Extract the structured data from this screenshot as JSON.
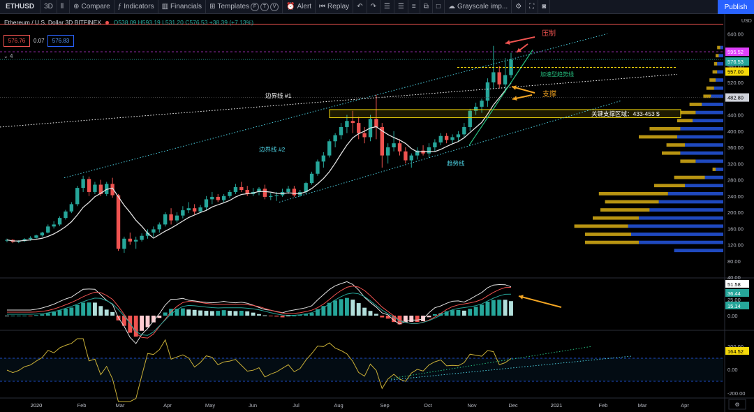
{
  "toolbar": {
    "symbol": "ETHUSD",
    "interval": "3D",
    "compare": "Compare",
    "indicators": "Indicators",
    "financials": "Financials",
    "templates": "Templates",
    "template_letters": [
      "F",
      "T",
      "V"
    ],
    "alert": "Alert",
    "replay": "Replay",
    "theme": "Grayscale imp...",
    "publish": "Publish"
  },
  "legend": {
    "title": "Ethereum / U.S. Dollar",
    "interval": "3D",
    "exchange": "BITFINEX",
    "ohlc": "O538.09 H593.19 L531.20 C576.53 +38.39 (+7.13%)"
  },
  "price_boxes": {
    "bid": "576.76",
    "spread": "0.07",
    "ask": "576.83"
  },
  "indicator_count": "4",
  "colors": {
    "up": "#26a69a",
    "down": "#ef5350",
    "ma": "#e0e0e0",
    "accent_yellow": "#f5d90a",
    "cyan": "#4dd0e1",
    "volprofile_up": "#2962ff",
    "volprofile_dn": "#f5c518"
  },
  "chart_data": {
    "type": "candlestick",
    "currency": "USD",
    "price_axis": {
      "ylim": [
        40,
        680
      ],
      "ticks": [
        640,
        600,
        560,
        520,
        480,
        440,
        400,
        360,
        320,
        280,
        240,
        200,
        160,
        120,
        80,
        40
      ]
    },
    "x_axis_labels": [
      "2020",
      "Feb",
      "Mar",
      "Apr",
      "May",
      "Jun",
      "Jul",
      "Aug",
      "Sep",
      "Oct",
      "Nov",
      "Dec",
      "2021",
      "Feb",
      "Mar",
      "Apr"
    ],
    "price_labels": [
      {
        "text": "595.52",
        "color": "#e040fb"
      },
      {
        "text": "576.53",
        "color": "#26a69a"
      },
      {
        "text": "557.00",
        "color": "#f5d90a"
      },
      {
        "text": "482.80",
        "color": "#d1d4dc"
      }
    ],
    "candles": [
      [
        130,
        135,
        126,
        132
      ],
      [
        132,
        134,
        124,
        127
      ],
      [
        127,
        131,
        124,
        129
      ],
      [
        129,
        136,
        127,
        134
      ],
      [
        134,
        141,
        130,
        137
      ],
      [
        137,
        145,
        135,
        143
      ],
      [
        143,
        152,
        140,
        150
      ],
      [
        150,
        170,
        148,
        165
      ],
      [
        165,
        178,
        160,
        170
      ],
      [
        170,
        190,
        166,
        186
      ],
      [
        186,
        206,
        182,
        202
      ],
      [
        202,
        225,
        198,
        220
      ],
      [
        220,
        265,
        215,
        260
      ],
      [
        260,
        290,
        250,
        282
      ],
      [
        282,
        288,
        240,
        250
      ],
      [
        250,
        275,
        245,
        268
      ],
      [
        268,
        280,
        240,
        245
      ],
      [
        245,
        275,
        240,
        270
      ],
      [
        270,
        285,
        236,
        242
      ],
      [
        242,
        245,
        105,
        110
      ],
      [
        110,
        140,
        100,
        135
      ],
      [
        135,
        150,
        120,
        128
      ],
      [
        128,
        140,
        110,
        132
      ],
      [
        132,
        148,
        128,
        142
      ],
      [
        142,
        158,
        135,
        150
      ],
      [
        150,
        165,
        140,
        158
      ],
      [
        158,
        175,
        150,
        170
      ],
      [
        170,
        200,
        165,
        195
      ],
      [
        195,
        210,
        170,
        180
      ],
      [
        180,
        200,
        175,
        192
      ],
      [
        192,
        215,
        185,
        205
      ],
      [
        205,
        225,
        198,
        210
      ],
      [
        210,
        220,
        195,
        202
      ],
      [
        202,
        218,
        198,
        212
      ],
      [
        212,
        240,
        205,
        232
      ],
      [
        232,
        250,
        220,
        238
      ],
      [
        238,
        245,
        225,
        230
      ],
      [
        230,
        245,
        225,
        240
      ],
      [
        240,
        255,
        235,
        250
      ],
      [
        250,
        270,
        245,
        262
      ],
      [
        262,
        275,
        250,
        255
      ],
      [
        255,
        265,
        240,
        245
      ],
      [
        245,
        260,
        240,
        250
      ],
      [
        250,
        262,
        242,
        258
      ],
      [
        258,
        268,
        232,
        238
      ],
      [
        238,
        248,
        230,
        240
      ],
      [
        240,
        250,
        228,
        242
      ],
      [
        242,
        258,
        238,
        250
      ],
      [
        250,
        265,
        245,
        258
      ],
      [
        258,
        265,
        238,
        242
      ],
      [
        242,
        255,
        238,
        250
      ],
      [
        250,
        275,
        245,
        272
      ],
      [
        272,
        300,
        268,
        295
      ],
      [
        295,
        330,
        290,
        325
      ],
      [
        325,
        348,
        310,
        340
      ],
      [
        340,
        380,
        335,
        375
      ],
      [
        375,
        395,
        360,
        390
      ],
      [
        390,
        420,
        380,
        410
      ],
      [
        410,
        440,
        395,
        425
      ],
      [
        425,
        450,
        395,
        420
      ],
      [
        420,
        435,
        380,
        395
      ],
      [
        395,
        410,
        370,
        385
      ],
      [
        385,
        440,
        375,
        430
      ],
      [
        430,
        490,
        380,
        410
      ],
      [
        410,
        420,
        310,
        340
      ],
      [
        340,
        370,
        320,
        360
      ],
      [
        360,
        400,
        350,
        370
      ],
      [
        370,
        380,
        340,
        350
      ],
      [
        350,
        360,
        320,
        328
      ],
      [
        328,
        345,
        310,
        340
      ],
      [
        340,
        360,
        330,
        352
      ],
      [
        352,
        365,
        340,
        345
      ],
      [
        345,
        370,
        335,
        360
      ],
      [
        360,
        380,
        350,
        372
      ],
      [
        372,
        395,
        365,
        388
      ],
      [
        388,
        395,
        370,
        378
      ],
      [
        378,
        392,
        368,
        385
      ],
      [
        385,
        400,
        375,
        392
      ],
      [
        392,
        420,
        385,
        410
      ],
      [
        410,
        455,
        400,
        450
      ],
      [
        450,
        470,
        440,
        460
      ],
      [
        460,
        480,
        445,
        475
      ],
      [
        475,
        530,
        460,
        520
      ],
      [
        520,
        610,
        505,
        545
      ],
      [
        545,
        560,
        505,
        515
      ],
      [
        515,
        580,
        495,
        538
      ],
      [
        538,
        593,
        531,
        576
      ]
    ],
    "ma_line": "20-period moving average (white)",
    "macd_panel": {
      "label_values": [
        "51.58",
        "36.44",
        "25.00",
        "15.14",
        "0.00"
      ],
      "fast_color": "#e0e0e0",
      "slow_color": "#26a69a",
      "signal_color": "#ef5350"
    },
    "cci_panel": {
      "label_values": [
        "200.00",
        "164.52",
        "0.00",
        "-200.00"
      ]
    },
    "volume_profile": [
      {
        "price": 100,
        "up": 0.32,
        "dn": 0.0
      },
      {
        "price": 120,
        "up": 0.55,
        "dn": 0.35
      },
      {
        "price": 140,
        "up": 0.6,
        "dn": 0.3
      },
      {
        "price": 160,
        "up": 0.62,
        "dn": 0.35
      },
      {
        "price": 180,
        "up": 0.55,
        "dn": 0.3
      },
      {
        "price": 200,
        "up": 0.48,
        "dn": 0.32
      },
      {
        "price": 220,
        "up": 0.42,
        "dn": 0.35
      },
      {
        "price": 240,
        "up": 0.36,
        "dn": 0.45
      },
      {
        "price": 260,
        "up": 0.25,
        "dn": 0.2
      },
      {
        "price": 280,
        "up": 0.12,
        "dn": 0.2
      },
      {
        "price": 300,
        "up": 0.05,
        "dn": 0.02
      },
      {
        "price": 320,
        "up": 0.18,
        "dn": 0.1
      },
      {
        "price": 340,
        "up": 0.28,
        "dn": 0.12
      },
      {
        "price": 360,
        "up": 0.25,
        "dn": 0.12
      },
      {
        "price": 380,
        "up": 0.3,
        "dn": 0.25
      },
      {
        "price": 400,
        "up": 0.28,
        "dn": 0.2
      },
      {
        "price": 420,
        "up": 0.2,
        "dn": 0.1
      },
      {
        "price": 440,
        "up": 0.18,
        "dn": 0.1
      },
      {
        "price": 460,
        "up": 0.14,
        "dn": 0.08
      },
      {
        "price": 480,
        "up": 0.08,
        "dn": 0.05
      },
      {
        "price": 500,
        "up": 0.06,
        "dn": 0.05
      },
      {
        "price": 520,
        "up": 0.05,
        "dn": 0.04
      },
      {
        "price": 540,
        "up": 0.04,
        "dn": 0.03
      },
      {
        "price": 560,
        "up": 0.04,
        "dn": 0.02
      },
      {
        "price": 580,
        "up": 0.03,
        "dn": 0.02
      },
      {
        "price": 600,
        "up": 0.02,
        "dn": 0.02
      }
    ],
    "annotations": [
      {
        "text": "压制",
        "color": "#ef5350"
      },
      {
        "text": "加速型趋势线",
        "color": "#26c281"
      },
      {
        "text": "支撑",
        "color": "#f5a623"
      },
      {
        "text": "边界线 #1",
        "color": "#ffffff"
      },
      {
        "text": "关键支撑区域：433-453 $",
        "color": "#ffffff"
      },
      {
        "text": "边界线 #2",
        "color": "#4dd0e1"
      },
      {
        "text": "趋势线",
        "color": "#4dd0e1"
      }
    ],
    "support_zone": [
      433,
      453
    ]
  }
}
